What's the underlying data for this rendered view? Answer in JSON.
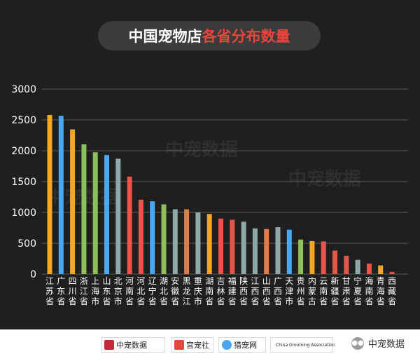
{
  "header": {
    "title_main": "中国宠物店",
    "title_accent": "各省分布数量"
  },
  "colors": {
    "background": "#1f1f1f",
    "title_accent": "#e8453c",
    "grid": "#5a5a5a",
    "axis_text": "#ffffff"
  },
  "chart_data": {
    "type": "bar",
    "title": "中国宠物店各省分布数量",
    "xlabel": "",
    "ylabel": "",
    "ylim": [
      0,
      3000
    ],
    "yticks": [
      0,
      500,
      1000,
      1500,
      2000,
      2500,
      3000
    ],
    "grid": true,
    "categories": [
      "江苏省",
      "广东省",
      "四川省",
      "浙江省",
      "上海市",
      "山东省",
      "北京市",
      "河南省",
      "河北省",
      "辽宁省",
      "湖北省",
      "安徽省",
      "黑龙江",
      "重庆市",
      "湖南省",
      "吉林省",
      "福建省",
      "陕西省",
      "江西省",
      "山西省",
      "广西省",
      "天津市",
      "贵州省",
      "内蒙古",
      "云南省",
      "新疆省",
      "甘肃省",
      "宁夏省",
      "海南省",
      "青海省",
      "西藏省"
    ],
    "values": [
      2580,
      2565,
      2345,
      2105,
      1975,
      1930,
      1870,
      1580,
      1205,
      1180,
      1130,
      1050,
      1050,
      1000,
      975,
      900,
      880,
      850,
      740,
      730,
      760,
      720,
      560,
      535,
      530,
      380,
      295,
      230,
      170,
      140,
      35
    ],
    "bar_colors": [
      "#f5a623",
      "#4aa8f0",
      "#f5a623",
      "#8fbf5a",
      "#8fbf5a",
      "#4aa8f0",
      "#8fa8a8",
      "#e8564b",
      "#e8564b",
      "#4aa8f0",
      "#8fbf5a",
      "#8fa8a8",
      "#e07b4a",
      "#8fa8a8",
      "#f5a623",
      "#e8564b",
      "#e8564b",
      "#8fa8a8",
      "#8fa8a8",
      "#e07b4a",
      "#8fa8a8",
      "#4aa8f0",
      "#8fbf5a",
      "#f5a623",
      "#e8564b",
      "#e8564b",
      "#e8564b",
      "#8fa8a8",
      "#e8564b",
      "#f5a623",
      "#e8564b"
    ]
  },
  "watermarks": [
    "中宠数据",
    "中宠数据",
    "中宠数据"
  ],
  "footer": {
    "logos": [
      "中宠数据",
      "宫宠社",
      "猎宠网",
      "China Grooming Association"
    ],
    "wechat_label": "中宠数据"
  }
}
